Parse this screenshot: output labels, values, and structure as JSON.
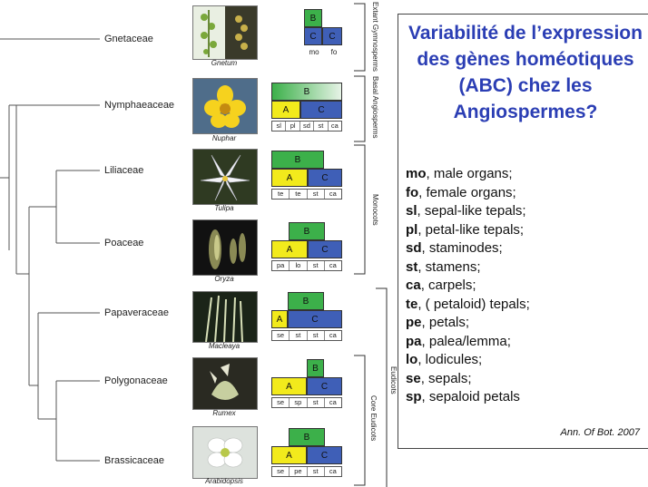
{
  "taxa": [
    {
      "name": "Gnetaceae",
      "genus": "Gnetum",
      "model": "gymno",
      "blocks": [
        {
          "t": "B",
          "label": "B"
        },
        {
          "t": "C",
          "label": "C"
        },
        {
          "t": "C",
          "label": "C"
        }
      ],
      "whorls": [
        "mo",
        "fo"
      ]
    },
    {
      "name": "Nymphaeaceae",
      "genus": "Nuphar",
      "model": "gradient",
      "blocks": [
        {
          "t": "Bgrad",
          "label": "B"
        },
        {
          "t": "A",
          "label": "A"
        },
        {
          "t": "C",
          "label": "C"
        }
      ],
      "whorls": [
        "sl",
        "pl",
        "sd",
        "st",
        "ca"
      ]
    },
    {
      "name": "Liliaceae",
      "genus": "Tulipa",
      "model": "ABC",
      "blocks": [
        {
          "t": "B",
          "label": "B"
        },
        {
          "t": "A",
          "label": "A"
        },
        {
          "t": "C",
          "label": "C"
        }
      ],
      "whorls": [
        "te",
        "te",
        "st",
        "ca"
      ]
    },
    {
      "name": "Poaceae",
      "genus": "Oryza",
      "model": "ABC",
      "blocks": [
        {
          "t": "B",
          "label": "B"
        },
        {
          "t": "A",
          "label": "A"
        },
        {
          "t": "C",
          "label": "C"
        }
      ],
      "whorls": [
        "pa",
        "lo",
        "st",
        "ca"
      ]
    },
    {
      "name": "Papaveraceae",
      "genus": "Macleaya",
      "model": "ABC-narrowA",
      "blocks": [
        {
          "t": "B",
          "label": "B"
        },
        {
          "t": "A",
          "label": "A"
        },
        {
          "t": "C",
          "label": "C"
        }
      ],
      "whorls": [
        "se",
        "st",
        "st",
        "ca"
      ]
    },
    {
      "name": "Polygonaceae",
      "genus": "Rumex",
      "model": "ABC-narrowB",
      "blocks": [
        {
          "t": "B",
          "label": "B"
        },
        {
          "t": "A",
          "label": "A"
        },
        {
          "t": "C",
          "label": "C"
        }
      ],
      "whorls": [
        "se",
        "sp",
        "st",
        "ca"
      ]
    },
    {
      "name": "Brassicaceae",
      "genus": "Arabidopsis",
      "model": "ABC",
      "blocks": [
        {
          "t": "B",
          "label": "B"
        },
        {
          "t": "A",
          "label": "A"
        },
        {
          "t": "C",
          "label": "C"
        }
      ],
      "whorls": [
        "se",
        "pe",
        "st",
        "ca"
      ]
    }
  ],
  "groups": {
    "extant_gymnosperms": "Extant Gymnosperms",
    "basal_angiosperms": "Basal Angiosperms",
    "monocots": "Monocots",
    "eudicots": "Eudicots",
    "core_eudicots": "Core Eudicots"
  },
  "panel": {
    "title": "Variabilité de l’expression des gènes homéotiques (ABC) chez les Angiospermes?",
    "legend": [
      {
        "abbr": "mo",
        "desc": ", male organs;"
      },
      {
        "abbr": "fo",
        "desc": ", female organs;"
      },
      {
        "abbr": "sl",
        "desc": ", sepal-like tepals;"
      },
      {
        "abbr": "pl",
        "desc": ", petal-like tepals;"
      },
      {
        "abbr": "sd",
        "desc": ", staminodes;"
      },
      {
        "abbr": "st",
        "desc": ", stamens;"
      },
      {
        "abbr": "ca",
        "desc": ", carpels;"
      },
      {
        "abbr": "te",
        "desc": ", ( petaloid) tepals;"
      },
      {
        "abbr": "pe",
        "desc": ", petals;"
      },
      {
        "abbr": "pa",
        "desc": ", palea/lemma;"
      },
      {
        "abbr": "lo",
        "desc": ", lodicules;"
      },
      {
        "abbr": "se",
        "desc": ", sepals;"
      },
      {
        "abbr": "sp",
        "desc": ", sepaloid petals"
      }
    ],
    "citation": "Ann. Of Bot. 2007"
  },
  "colors": {
    "B": "#3cb04a",
    "A": "#f2ea1c",
    "C": "#3f5fb7",
    "title": "#2b3eb4"
  }
}
